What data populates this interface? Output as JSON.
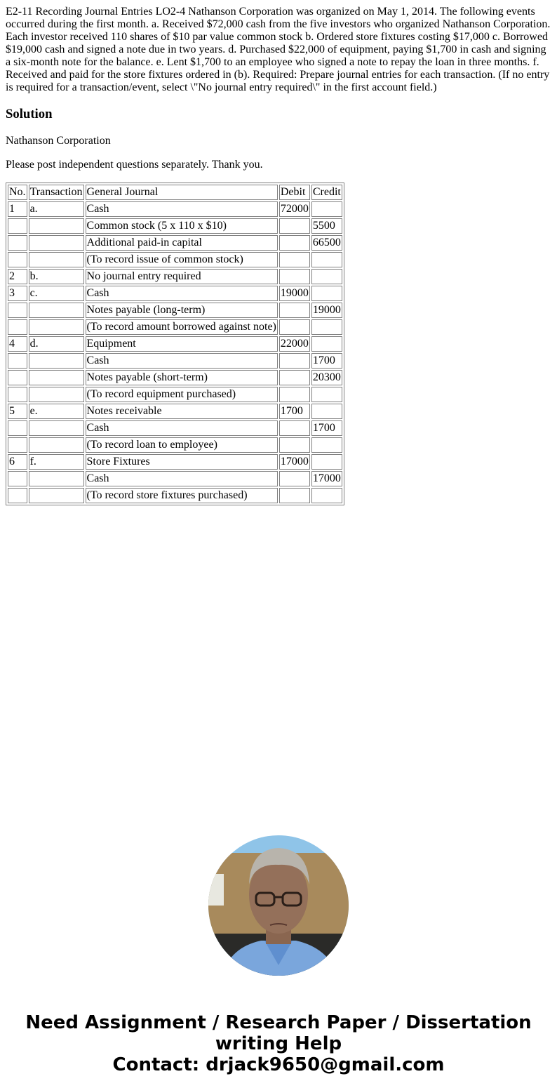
{
  "question": "E2-11 Recording Journal Entries LO2-4 Nathanson Corporation was organized on May 1, 2014. The following events occurred during the first month. a. Received $72,000 cash from the five investors who organized Nathanson Corporation. Each investor received 110 shares of $10 par value common stock b. Ordered store fixtures costing $17,000 c. Borrowed $19,000 cash and signed a note due in two years. d. Purchased $22,000 of equipment, paying $1,700 in cash and signing a six-month note for the balance. e. Lent $1,700 to an employee who signed a note to repay the loan in three months. f. Received and paid for the store fixtures ordered in (b). Required: Prepare journal entries for each transaction. (If no entry is required for a transaction/event, select \\\"No journal entry required\\\" in the first account field.)",
  "solution_heading": "Solution",
  "company": "Nathanson Corporation",
  "note": "Please post independent questions separately. Thank you.",
  "table": {
    "headers": [
      "No.",
      "Transaction",
      "General Journal",
      "Debit",
      "Credit"
    ],
    "rows": [
      [
        "1",
        "a.",
        "Cash",
        "72000",
        ""
      ],
      [
        "",
        "",
        "Common stock (5 x 110 x $10)",
        "",
        "5500"
      ],
      [
        "",
        "",
        "Additional paid-in capital",
        "",
        "66500"
      ],
      [
        "",
        "",
        "(To record issue of common stock)",
        "",
        ""
      ],
      [
        "2",
        "b.",
        "No journal entry required",
        "",
        ""
      ],
      [
        "3",
        "c.",
        "Cash",
        "19000",
        ""
      ],
      [
        "",
        "",
        "Notes payable (long-term)",
        "",
        "19000"
      ],
      [
        "",
        "",
        "(To record amount borrowed against note)",
        "",
        ""
      ],
      [
        "4",
        "d.",
        "Equipment",
        "22000",
        ""
      ],
      [
        "",
        "",
        "Cash",
        "",
        "1700"
      ],
      [
        "",
        "",
        "Notes payable (short-term)",
        "",
        "20300"
      ],
      [
        "",
        "",
        "(To record equipment purchased)",
        "",
        ""
      ],
      [
        "5",
        "e.",
        "Notes receivable",
        "1700",
        ""
      ],
      [
        "",
        "",
        "Cash",
        "",
        "1700"
      ],
      [
        "",
        "",
        "(To record loan to employee)",
        "",
        ""
      ],
      [
        "6",
        "f.",
        "Store Fixtures",
        "17000",
        ""
      ],
      [
        "",
        "",
        "Cash",
        "",
        "17000"
      ],
      [
        "",
        "",
        "(To record store fixtures purchased)",
        "",
        ""
      ]
    ]
  },
  "promo": {
    "line1": "Need Assignment / Research Paper / Dissertation writing Help",
    "line2": "Contact: drjack9650@gmail.com"
  }
}
